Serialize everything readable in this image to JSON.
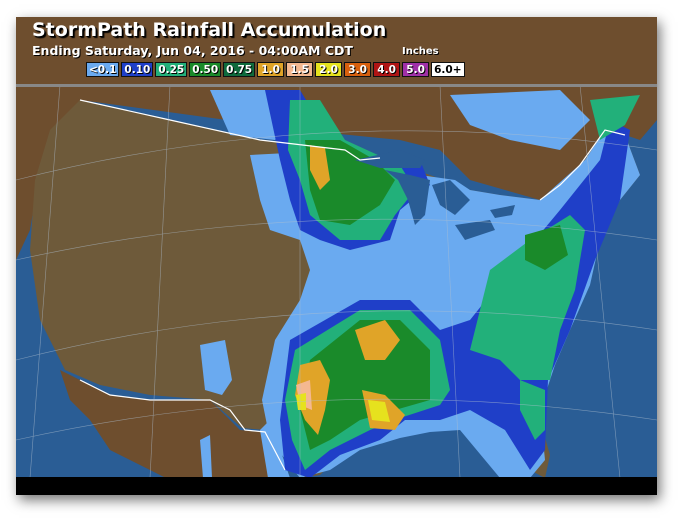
{
  "header": {
    "title": "StormPath Rainfall Accumulation",
    "subtitle": "Ending Saturday, Jun 04, 2016 - 04:00AM CDT",
    "units": "Inches"
  },
  "legend": [
    {
      "label": "<0.1",
      "color": "#6aaaf0"
    },
    {
      "label": "0.10",
      "color": "#1f3fc8"
    },
    {
      "label": "0.25",
      "color": "#22b07a"
    },
    {
      "label": "0.50",
      "color": "#1a8a2a"
    },
    {
      "label": "0.75",
      "color": "#0e6a3c"
    },
    {
      "label": "1.0",
      "color": "#e0a428"
    },
    {
      "label": "1.5",
      "color": "#f4b890"
    },
    {
      "label": "2.0",
      "color": "#e6e21e"
    },
    {
      "label": "3.0",
      "color": "#d8600e"
    },
    {
      "label": "4.0",
      "color": "#b01414"
    },
    {
      "label": "5.0",
      "color": "#a030a8"
    },
    {
      "label": "6.0+",
      "color": "#ffffff"
    }
  ],
  "colors": {
    "ocean": "#2a5d95",
    "land": "#6e5a3a",
    "canada_land": "#6e4e2e",
    "lakes": "#2a5d95"
  }
}
